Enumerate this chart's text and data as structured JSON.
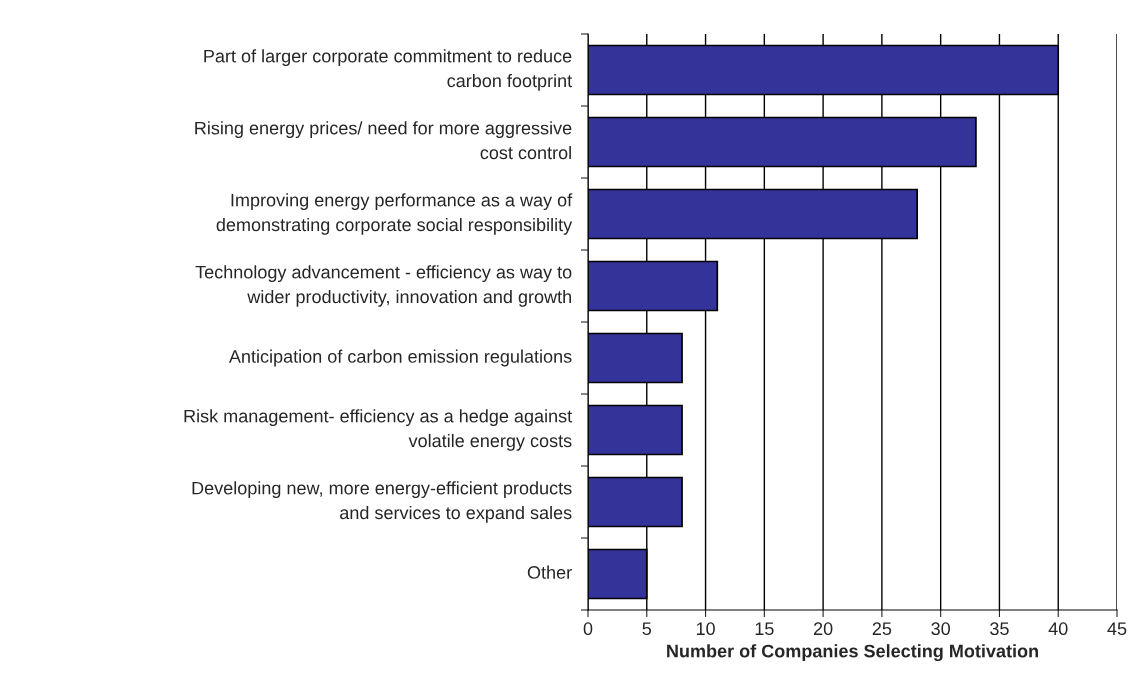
{
  "chart_data": {
    "type": "bar",
    "orientation": "horizontal",
    "categories": [
      "Part of larger corporate commitment to reduce\ncarbon footprint",
      "Rising energy prices/ need for more aggressive\ncost control",
      "Improving energy performance as a way of\ndemonstrating corporate social responsibility",
      "Technology advancement - efficiency as way to\nwider productivity, innovation and growth",
      "Anticipation of carbon emission regulations",
      "Risk management- efficiency as a hedge against\nvolatile energy costs",
      "Developing new, more energy-efficient products\nand services to expand sales",
      "Other"
    ],
    "values": [
      40,
      33,
      28,
      11,
      8,
      8,
      8,
      5
    ],
    "color": "#333399",
    "xlabel": "Number of Companies Selecting Motivation",
    "xlim": [
      0,
      45
    ],
    "xticks": [
      0,
      5,
      10,
      15,
      20,
      25,
      30,
      35,
      40,
      45
    ],
    "grid": "x"
  }
}
